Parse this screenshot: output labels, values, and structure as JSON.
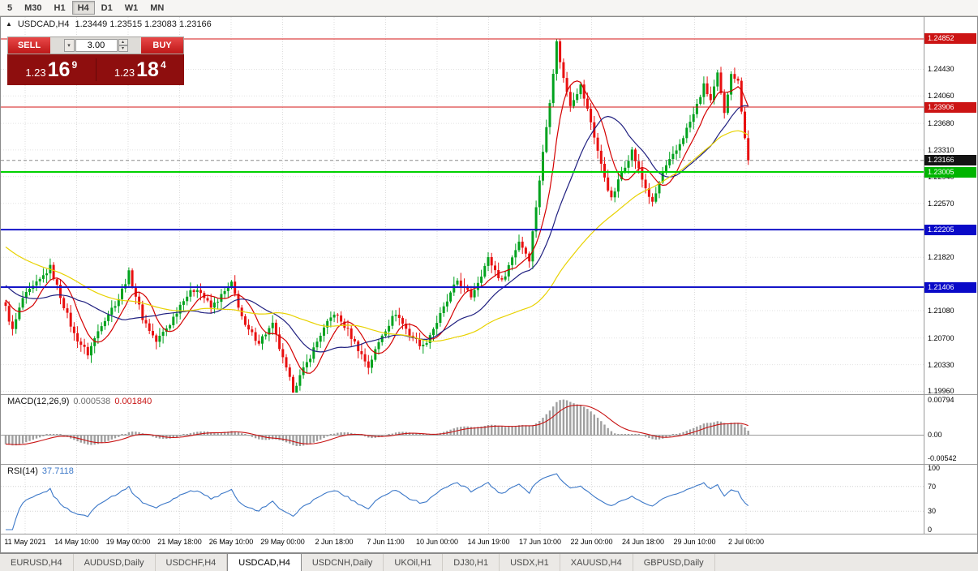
{
  "toolbar": {
    "timeframes": [
      "5",
      "M30",
      "H1",
      "H4",
      "D1",
      "W1",
      "MN"
    ],
    "active": "H4"
  },
  "quote": {
    "symbol": "USDCAD,H4",
    "values": "1.23449 1.23515 1.23083 1.23166"
  },
  "trade_panel": {
    "sell_label": "SELL",
    "buy_label": "BUY",
    "volume": "3.00",
    "sell_price": {
      "prefix": "1.23",
      "big": "16",
      "sup": "9"
    },
    "buy_price": {
      "prefix": "1.23",
      "big": "18",
      "sup": "4"
    }
  },
  "chart_data": {
    "type": "candlestick",
    "symbol": "USDCAD",
    "timeframe": "H4",
    "bars": 218,
    "waypoints": [
      [
        0,
        1.2112
      ],
      [
        2,
        1.208
      ],
      [
        5,
        1.2125
      ],
      [
        10,
        1.215
      ],
      [
        13,
        1.2168
      ],
      [
        16,
        1.2128
      ],
      [
        20,
        1.2075
      ],
      [
        24,
        1.2048
      ],
      [
        28,
        1.209
      ],
      [
        33,
        1.2125
      ],
      [
        36,
        1.216
      ],
      [
        40,
        1.2098
      ],
      [
        44,
        1.2065
      ],
      [
        48,
        1.209
      ],
      [
        52,
        1.2125
      ],
      [
        56,
        1.214
      ],
      [
        60,
        1.2112
      ],
      [
        66,
        1.2145
      ],
      [
        70,
        1.2085
      ],
      [
        74,
        1.2065
      ],
      [
        78,
        1.2088
      ],
      [
        81,
        1.204
      ],
      [
        84,
        1.1998
      ],
      [
        88,
        1.2035
      ],
      [
        92,
        1.2075
      ],
      [
        96,
        1.2105
      ],
      [
        100,
        1.208
      ],
      [
        106,
        1.203
      ],
      [
        110,
        1.2075
      ],
      [
        114,
        1.2105
      ],
      [
        118,
        1.2075
      ],
      [
        122,
        1.2058
      ],
      [
        126,
        1.2092
      ],
      [
        132,
        1.215
      ],
      [
        136,
        1.2128
      ],
      [
        141,
        1.218
      ],
      [
        145,
        1.2148
      ],
      [
        150,
        1.2205
      ],
      [
        153,
        1.218
      ],
      [
        156,
        1.229
      ],
      [
        159,
        1.24
      ],
      [
        161,
        1.248
      ],
      [
        163,
        1.243
      ],
      [
        165,
        1.2395
      ],
      [
        168,
        1.242
      ],
      [
        171,
        1.237
      ],
      [
        174,
        1.231
      ],
      [
        177,
        1.2262
      ],
      [
        180,
        1.23
      ],
      [
        183,
        1.233
      ],
      [
        186,
        1.229
      ],
      [
        189,
        1.2256
      ],
      [
        192,
        1.23
      ],
      [
        196,
        1.233
      ],
      [
        201,
        1.238
      ],
      [
        204,
        1.242
      ],
      [
        206,
        1.24
      ],
      [
        208,
        1.2435
      ],
      [
        210,
        1.238
      ],
      [
        212,
        1.244
      ],
      [
        214,
        1.2425
      ],
      [
        216,
        1.235
      ],
      [
        217,
        1.23166
      ]
    ],
    "last_close": 1.23166,
    "extremes": {
      "high_bar": 161,
      "high": 1.24852,
      "low_bar": 84,
      "low": 1.1996
    },
    "candle_up_color": "#00a21e",
    "candle_down_color": "#e81010",
    "price_axis_labels": [
      "1.24430",
      "1.24060",
      "1.23680",
      "1.23310",
      "1.22940",
      "1.22570",
      "1.21820",
      "1.21080",
      "1.20700",
      "1.20330",
      "1.19960"
    ],
    "price_badges": [
      {
        "text": "1.24852",
        "bg": "#cc1414"
      },
      {
        "text": "1.23906",
        "bg": "#cc1414"
      },
      {
        "text": "1.23166",
        "bg": "#141414"
      },
      {
        "text": "1.23005",
        "bg": "#00b400"
      },
      {
        "text": "1.22205",
        "bg": "#0a0ac8"
      },
      {
        "text": "1.21406",
        "bg": "#0a0ac8"
      }
    ],
    "hlines": [
      {
        "price": 1.24852,
        "color": "#d41414",
        "width": 1
      },
      {
        "price": 1.23906,
        "color": "#d41414",
        "width": 1
      },
      {
        "price": 1.23166,
        "color": "#8c8c8c",
        "width": 1,
        "dashed": true
      },
      {
        "price": 1.23005,
        "color": "#00d200",
        "width": 2
      },
      {
        "price": 1.22205,
        "color": "#1414c8",
        "width": 2
      },
      {
        "price": 1.21406,
        "color": "#1414c8",
        "width": 2
      }
    ],
    "moving_averages": [
      {
        "period": 8,
        "color": "#d40000"
      },
      {
        "period": 21,
        "color": "#202080"
      },
      {
        "period": 55,
        "color": "#e8d200"
      }
    ],
    "time_axis_labels": [
      "11 May 2021",
      "14 May 10:00",
      "19 May 00:00",
      "21 May 18:00",
      "26 May 10:00",
      "29 May 00:00",
      "2 Jun 18:00",
      "7 Jun 11:00",
      "10 Jun 00:00",
      "14 Jun 19:00",
      "17 Jun 10:00",
      "22 Jun 00:00",
      "24 Jun 18:00",
      "29 Jun 10:00",
      "2 Jul 00:00"
    ],
    "indicators": {
      "macd": {
        "label": "MACD(12,26,9)",
        "value_main": "0.000538",
        "value_signal": "0.001840",
        "axis_labels": [
          "0.00794",
          "0.00",
          "-0.00542"
        ],
        "fast": 12,
        "slow": 26,
        "signal_period": 9,
        "histogram_color": "#a0a0a0",
        "signal_color": "#c81414"
      },
      "rsi": {
        "label": "RSI(14)",
        "value": "37.7118",
        "axis_labels": [
          "100",
          "70",
          "30",
          "0"
        ],
        "period": 14,
        "line_color": "#3c78c8",
        "levels": [
          70,
          30
        ]
      }
    }
  },
  "tabs": {
    "items": [
      "EURUSD,H4",
      "AUDUSD,Daily",
      "USDCHF,H4",
      "USDCAD,H4",
      "USDCNH,Daily",
      "UKOil,H1",
      "DJ30,H1",
      "USDX,H1",
      "XAUUSD,H4",
      "GBPUSD,Daily"
    ],
    "active": "USDCAD,H4"
  }
}
